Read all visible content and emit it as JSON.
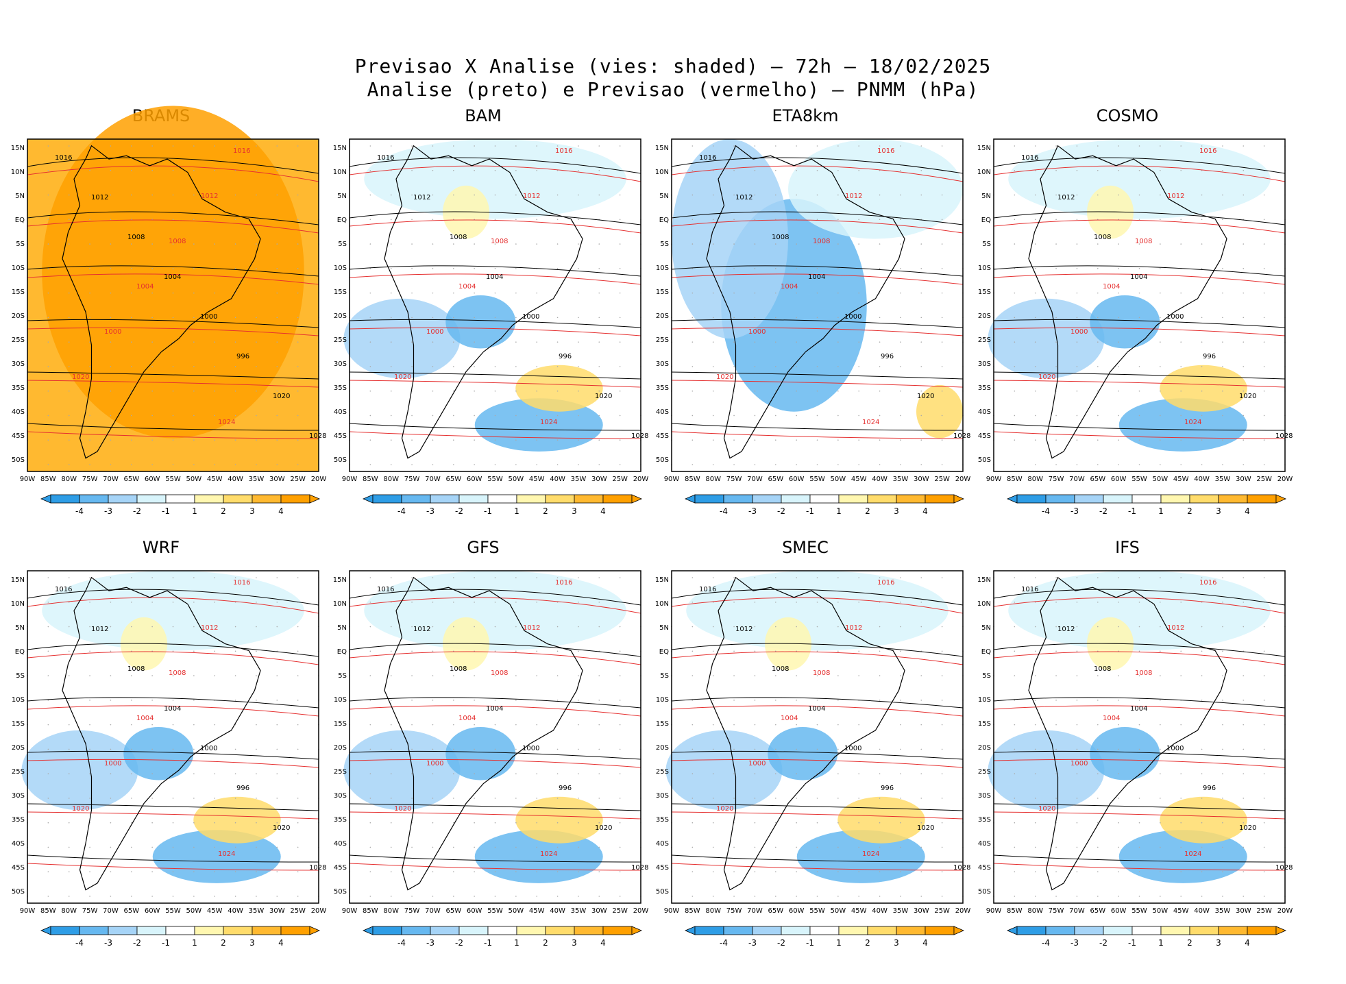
{
  "title": {
    "line1": "Previsao X Analise (vies: shaded) – 72h – 18/02/2025",
    "line2": "Analise (preto) e Previsao (vermelho) – PNMM (hPa)"
  },
  "lat_labels": [
    "15N",
    "10N",
    "5N",
    "EQ",
    "5S",
    "10S",
    "15S",
    "20S",
    "25S",
    "30S",
    "35S",
    "40S",
    "45S",
    "50S"
  ],
  "lon_labels": [
    "90W",
    "85W",
    "80W",
    "75W",
    "70W",
    "65W",
    "60W",
    "55W",
    "50W",
    "45W",
    "40W",
    "35W",
    "30W",
    "25W",
    "20W"
  ],
  "colorbar": {
    "labels": [
      "-4",
      "-3",
      "-2",
      "-1",
      "1",
      "2",
      "3",
      "4"
    ],
    "colors": [
      "#2e9de6",
      "#66b8f0",
      "#a6d4f7",
      "#d8f4fb",
      "#ffffff",
      "#fff7b0",
      "#ffdc6b",
      "#ffb930",
      "#ffa000"
    ]
  },
  "panels": [
    {
      "name": "BRAMS",
      "bias": "warm"
    },
    {
      "name": "BAM",
      "bias": "mixed"
    },
    {
      "name": "ETA8km",
      "bias": "cool"
    },
    {
      "name": "COSMO",
      "bias": "mixed"
    },
    {
      "name": "WRF",
      "bias": "mixed"
    },
    {
      "name": "GFS",
      "bias": "mixed"
    },
    {
      "name": "SMEC",
      "bias": "mixed"
    },
    {
      "name": "IFS",
      "bias": "mixed"
    }
  ],
  "isobar_labels": {
    "analysis": [
      "1016",
      "1012",
      "1008",
      "1004",
      "1000",
      "996",
      "1020",
      "1028"
    ],
    "forecast": [
      "1016",
      "1012",
      "1008",
      "1004",
      "1000",
      "1020",
      "1024"
    ]
  }
}
